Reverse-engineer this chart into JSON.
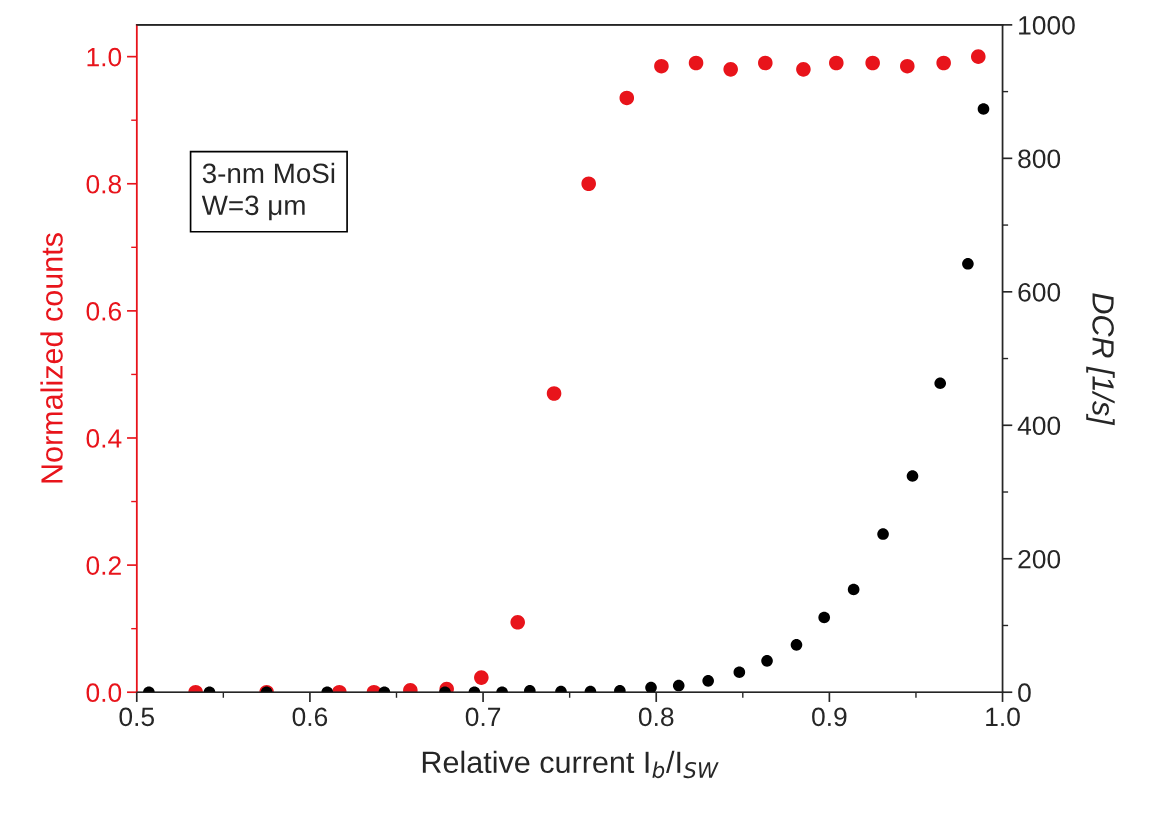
{
  "chart_data": {
    "type": "scatter",
    "xlabel": "Relative current I$_{b}$/I$_{SW}$",
    "ylabel": "Normalized counts",
    "y2label": "DCR [1/s]",
    "annotations": [
      "3-nm MoSi",
      "W=3 μm"
    ],
    "xlim": [
      0.5,
      1.0
    ],
    "xticks": [
      0.5,
      0.6,
      0.7,
      0.8,
      0.9,
      {
        "value": 1,
        "label": "1.0"
      }
    ],
    "ylim": [
      0,
      1.05
    ],
    "yticks": [
      {
        "value": 0,
        "label": "0.0"
      },
      0.2,
      0.4,
      0.6,
      0.8,
      {
        "value": 1,
        "label": "1.0"
      }
    ],
    "y2lim": [
      0,
      1000
    ],
    "y2ticks": [
      0,
      200,
      400,
      600,
      800,
      1000
    ],
    "marker": "circle",
    "grid": false,
    "series": [
      {
        "color": "#e8141b",
        "x": [
          0.534,
          0.575,
          0.617,
          0.637,
          0.658,
          0.679,
          0.699,
          0.72,
          0.741,
          0.761,
          0.783,
          0.803,
          0.823,
          0.843,
          0.863,
          0.885,
          0.904,
          0.925,
          0.945,
          0.966,
          0.986
        ],
        "values": [
          0,
          0,
          0,
          0,
          0.003,
          0.005,
          0.023,
          0.11,
          0.47,
          0.8,
          0.935,
          0.985,
          0.99,
          0.98,
          0.99,
          0.98,
          0.99,
          0.99,
          0.985,
          0.99,
          1.0
        ]
      },
      {
        "color": "#000000",
        "axis": "y2",
        "x": [
          0.507,
          0.542,
          0.575,
          0.61,
          0.643,
          0.678,
          0.695,
          0.711,
          0.727,
          0.745,
          0.762,
          0.779,
          0.797,
          0.813,
          0.83,
          0.848,
          0.864,
          0.881,
          0.897,
          0.914,
          0.931,
          0.948,
          0.964,
          0.98,
          0.989
        ],
        "values": [
          0,
          0,
          0,
          0,
          0,
          0,
          0,
          0,
          2,
          1,
          1,
          2,
          7,
          10,
          17,
          30,
          47,
          71,
          112,
          154,
          237,
          324,
          463,
          642,
          874
        ]
      }
    ]
  }
}
